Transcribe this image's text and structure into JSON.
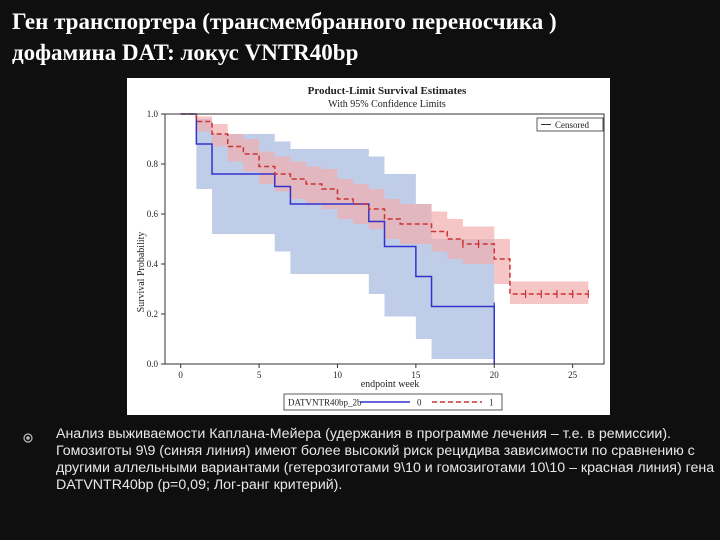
{
  "slide": {
    "title_line1": "Ген транспортера (трансмембранного переносчика )",
    "title_line2": "дофамина  DAT:  локус  VNTR40bp",
    "caption": "Анализ выживаемости Каплана-Мейера (удержания в программе лечения – т.е. в ремиссии). Гомозиготы 9\\9 (синяя линия) имеют более высокий риск рецидива зависимости по сравнению с другими аллельными вариантами (гетерозиготами 9\\10 и гомозиготами 10\\10 – красная линия) гена DATVNTR40bp (p=0,09; Лог-ранг критерий).",
    "bullet_icon": "circle-bullet-icon"
  },
  "colors": {
    "background": "#0f0f0f",
    "blue_line": "#3333cc",
    "blue_band": "#b9c8e6",
    "red_line": "#cc3333",
    "red_band": "#f2aeae"
  },
  "chart_data": {
    "type": "line",
    "title": "Product-Limit Survival Estimates",
    "subtitle": "With 95% Confidence Limits",
    "xlabel": "endpoint week",
    "ylabel": "Survival Probability",
    "xlim": [
      -1,
      27
    ],
    "ylim": [
      0,
      1
    ],
    "xticks": [
      0,
      5,
      10,
      15,
      20,
      25
    ],
    "yticks": [
      "0.0",
      "0.2",
      "0.4",
      "0.6",
      "0.8",
      "1.0"
    ],
    "grid": false,
    "legend": {
      "position": "top-right",
      "label": "Censored",
      "strata_title": "DATVNTR40bp_2b",
      "strata": [
        "0",
        "1"
      ]
    },
    "series": [
      {
        "name": "0",
        "color": "#3333cc",
        "style": "solid",
        "x": [
          0,
          1,
          2,
          5,
          6,
          7,
          10,
          12,
          13,
          15,
          16,
          20
        ],
        "y": [
          1.0,
          0.88,
          0.76,
          0.76,
          0.71,
          0.64,
          0.64,
          0.57,
          0.47,
          0.35,
          0.23,
          0.0
        ],
        "ci_lower": [
          1.0,
          0.7,
          0.52,
          0.52,
          0.45,
          0.36,
          0.36,
          0.28,
          0.19,
          0.1,
          0.02,
          0.0
        ],
        "ci_upper": [
          1.0,
          0.98,
          0.92,
          0.92,
          0.89,
          0.86,
          0.86,
          0.83,
          0.76,
          0.64,
          0.5,
          0.0
        ],
        "censored": [
          [
            20,
            0.23
          ]
        ]
      },
      {
        "name": "1",
        "color": "#cc3333",
        "style": "dashed",
        "x": [
          0,
          1,
          2,
          3,
          4,
          5,
          6,
          7,
          8,
          9,
          10,
          11,
          12,
          13,
          14,
          16,
          17,
          18,
          20,
          21
        ],
        "y": [
          1.0,
          0.97,
          0.92,
          0.87,
          0.84,
          0.79,
          0.76,
          0.74,
          0.72,
          0.7,
          0.66,
          0.64,
          0.62,
          0.58,
          0.56,
          0.53,
          0.5,
          0.48,
          0.42,
          0.28
        ],
        "ci_lower": [
          1.0,
          0.93,
          0.87,
          0.81,
          0.77,
          0.72,
          0.69,
          0.66,
          0.64,
          0.62,
          0.58,
          0.56,
          0.54,
          0.5,
          0.48,
          0.45,
          0.42,
          0.4,
          0.32,
          0.24
        ],
        "ci_upper": [
          1.0,
          0.99,
          0.96,
          0.92,
          0.9,
          0.85,
          0.83,
          0.81,
          0.79,
          0.78,
          0.74,
          0.72,
          0.7,
          0.66,
          0.64,
          0.61,
          0.58,
          0.55,
          0.5,
          0.33
        ],
        "censored": [
          [
            18,
            0.48
          ],
          [
            19,
            0.48
          ],
          [
            22,
            0.28
          ],
          [
            23,
            0.28
          ],
          [
            24,
            0.28
          ],
          [
            25,
            0.28
          ],
          [
            26,
            0.28
          ]
        ]
      }
    ]
  }
}
